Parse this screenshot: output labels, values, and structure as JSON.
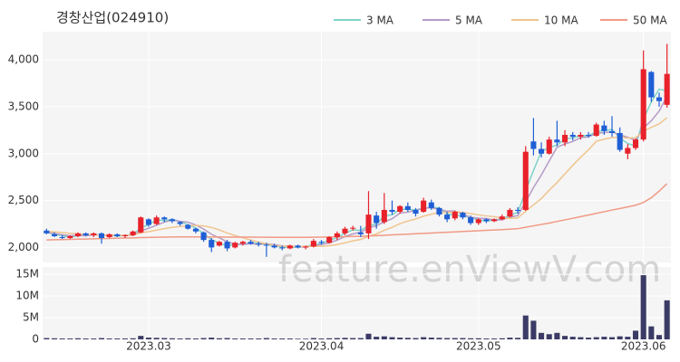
{
  "chart_data": [
    {
      "type": "candlestick",
      "title": "경창산업(024910)",
      "watermark": "feature.enViewV.com",
      "legend": "top-right",
      "up_color": "#e8212a",
      "down_color": "#1f5fd6",
      "grid": true,
      "categories": [
        null,
        null,
        null,
        null,
        null,
        null,
        null,
        null,
        null,
        null,
        null,
        null,
        null,
        "2023.03",
        null,
        null,
        null,
        null,
        null,
        null,
        null,
        null,
        null,
        null,
        null,
        null,
        null,
        null,
        null,
        null,
        null,
        null,
        null,
        null,
        null,
        "2023.04",
        null,
        null,
        null,
        null,
        null,
        null,
        null,
        null,
        null,
        null,
        null,
        null,
        null,
        null,
        null,
        null,
        null,
        null,
        null,
        "2023.05",
        null,
        null,
        null,
        null,
        null,
        null,
        null,
        null,
        null,
        null,
        null,
        null,
        null,
        null,
        null,
        null,
        null,
        null,
        null,
        null,
        "2023.06",
        null,
        null,
        null
      ],
      "open": [
        2180,
        2140,
        2110,
        2100,
        2120,
        2150,
        2130,
        2150,
        2110,
        2140,
        2120,
        2130,
        2160,
        2300,
        2250,
        2320,
        2300,
        2270,
        2240,
        2200,
        2160,
        2080,
        2020,
        2060,
        2000,
        2040,
        2060,
        2040,
        2030,
        2020,
        2000,
        1990,
        2020,
        2000,
        2010,
        2060,
        2050,
        2110,
        2150,
        2200,
        2160,
        2150,
        2340,
        2270,
        2400,
        2380,
        2440,
        2400,
        2380,
        2480,
        2420,
        2350,
        2310,
        2370,
        2320,
        2260,
        2300,
        2280,
        2300,
        2330,
        2400,
        2400,
        3130,
        3050,
        3000,
        3150,
        3120,
        3200,
        3180,
        3200,
        3190,
        3300,
        3240,
        3220,
        3000,
        3060,
        3150,
        3870,
        3600,
        3520
      ],
      "high": [
        2200,
        2160,
        2130,
        2130,
        2160,
        2160,
        2160,
        2160,
        2150,
        2150,
        2140,
        2180,
        2330,
        2310,
        2340,
        2330,
        2310,
        2280,
        2250,
        2210,
        2170,
        2100,
        2070,
        2080,
        2060,
        2070,
        2080,
        2060,
        2050,
        2040,
        2020,
        2030,
        2030,
        2020,
        2090,
        2080,
        2120,
        2170,
        2220,
        2230,
        2230,
        2600,
        2380,
        2580,
        2500,
        2450,
        2480,
        2420,
        2530,
        2510,
        2430,
        2380,
        2390,
        2380,
        2340,
        2310,
        2310,
        2310,
        2350,
        2420,
        2430,
        3080,
        3380,
        3120,
        3180,
        3350,
        3250,
        3230,
        3230,
        3230,
        3330,
        3350,
        3400,
        3280,
        3100,
        3160,
        4100,
        3880,
        3650,
        4170
      ],
      "low": [
        2140,
        2110,
        2090,
        2090,
        2110,
        2120,
        2110,
        2040,
        2100,
        2110,
        2100,
        2120,
        2150,
        2220,
        2240,
        2270,
        2260,
        2230,
        2190,
        2150,
        2060,
        1950,
        2010,
        1960,
        1990,
        2020,
        2030,
        2010,
        1900,
        1990,
        1970,
        1980,
        1990,
        1980,
        2000,
        2030,
        2040,
        2080,
        2130,
        2180,
        2110,
        2090,
        2200,
        2250,
        2350,
        2360,
        2380,
        2330,
        2370,
        2400,
        2330,
        2270,
        2290,
        2300,
        2240,
        2240,
        2260,
        2270,
        2290,
        2320,
        2360,
        2390,
        2980,
        2960,
        2990,
        3080,
        3080,
        3140,
        3150,
        3170,
        3180,
        3200,
        3180,
        3020,
        2940,
        3040,
        3130,
        3550,
        3500,
        3490
      ],
      "close": [
        2150,
        2120,
        2100,
        2120,
        2150,
        2130,
        2150,
        2100,
        2140,
        2120,
        2130,
        2170,
        2320,
        2240,
        2320,
        2300,
        2280,
        2250,
        2200,
        2170,
        2080,
        2000,
        2060,
        1990,
        2050,
        2060,
        2040,
        2030,
        2020,
        2000,
        1990,
        2020,
        2000,
        2010,
        2070,
        2050,
        2110,
        2150,
        2200,
        2210,
        2140,
        2350,
        2260,
        2400,
        2380,
        2440,
        2400,
        2360,
        2500,
        2420,
        2350,
        2300,
        2380,
        2320,
        2260,
        2300,
        2280,
        2300,
        2330,
        2400,
        2390,
        3020,
        3050,
        3000,
        3150,
        3120,
        3200,
        3180,
        3200,
        3190,
        3310,
        3240,
        3220,
        3040,
        3060,
        3150,
        3900,
        3600,
        3560,
        3850
      ],
      "series": [
        {
          "name": "3 MA",
          "color": "#7fd3c8",
          "values": [
            2160,
            2140,
            2123,
            2113,
            2123,
            2133,
            2143,
            2127,
            2130,
            2120,
            2130,
            2140,
            2207,
            2243,
            2293,
            2287,
            2300,
            2277,
            2243,
            2207,
            2150,
            2083,
            2047,
            2017,
            2033,
            2033,
            2050,
            2043,
            2030,
            2017,
            2003,
            2003,
            2003,
            2010,
            2027,
            2043,
            2077,
            2103,
            2153,
            2187,
            2183,
            2233,
            2250,
            2337,
            2347,
            2407,
            2407,
            2400,
            2420,
            2427,
            2423,
            2357,
            2343,
            2333,
            2320,
            2293,
            2280,
            2293,
            2303,
            2343,
            2373,
            2603,
            2820,
            3023,
            3067,
            3090,
            3157,
            3167,
            3193,
            3190,
            3233,
            3247,
            3257,
            3167,
            3107,
            3083,
            3370,
            3550,
            3687,
            3670
          ]
        },
        {
          "name": "5 MA",
          "color": "#b59bc6",
          "values": [
            2160,
            2150,
            2135,
            2125,
            2128,
            2124,
            2134,
            2130,
            2134,
            2128,
            2128,
            2132,
            2176,
            2204,
            2236,
            2270,
            2292,
            2278,
            2270,
            2240,
            2196,
            2140,
            2102,
            2060,
            2036,
            2032,
            2040,
            2034,
            2040,
            2030,
            2016,
            2012,
            2006,
            2004,
            2018,
            2030,
            2048,
            2078,
            2116,
            2144,
            2162,
            2210,
            2232,
            2272,
            2306,
            2366,
            2376,
            2396,
            2416,
            2424,
            2406,
            2386,
            2390,
            2354,
            2322,
            2312,
            2308,
            2292,
            2294,
            2322,
            2340,
            2488,
            2638,
            2772,
            2922,
            3068,
            3104,
            3130,
            3170,
            3178,
            3216,
            3224,
            3232,
            3200,
            3174,
            3142,
            3274,
            3350,
            3454,
            3612
          ]
        },
        {
          "name": "10 MA",
          "color": "#f1c48f",
          "values": [
            2170,
            2165,
            2160,
            2150,
            2145,
            2140,
            2135,
            2130,
            2130,
            2131,
            2129,
            2134,
            2156,
            2168,
            2185,
            2201,
            2214,
            2224,
            2230,
            2235,
            2230,
            2213,
            2187,
            2154,
            2127,
            2103,
            2079,
            2057,
            2039,
            2022,
            2013,
            2015,
            2009,
            2011,
            2013,
            2012,
            2019,
            2031,
            2049,
            2070,
            2085,
            2118,
            2144,
            2183,
            2214,
            2253,
            2282,
            2303,
            2333,
            2354,
            2375,
            2369,
            2381,
            2373,
            2361,
            2347,
            2335,
            2329,
            2312,
            2310,
            2314,
            2386,
            2453,
            2521,
            2610,
            2692,
            2784,
            2874,
            2961,
            3040,
            3132,
            3154,
            3171,
            3175,
            3166,
            3169,
            3239,
            3281,
            3317,
            3383
          ]
        },
        {
          "name": "50 MA",
          "color": "#f19a85",
          "values": [
            2080,
            2082,
            2084,
            2086,
            2088,
            2090,
            2092,
            2094,
            2096,
            2098,
            2100,
            2102,
            2105,
            2107,
            2109,
            2110,
            2111,
            2112,
            2112,
            2112,
            2112,
            2111,
            2111,
            2110,
            2110,
            2110,
            2110,
            2109,
            2109,
            2108,
            2108,
            2108,
            2108,
            2108,
            2109,
            2110,
            2111,
            2113,
            2115,
            2117,
            2119,
            2122,
            2126,
            2130,
            2134,
            2138,
            2142,
            2146,
            2150,
            2154,
            2158,
            2162,
            2166,
            2170,
            2174,
            2178,
            2182,
            2186,
            2190,
            2195,
            2200,
            2215,
            2230,
            2245,
            2260,
            2277,
            2294,
            2311,
            2328,
            2345,
            2363,
            2381,
            2399,
            2415,
            2432,
            2450,
            2480,
            2530,
            2600,
            2680
          ]
        }
      ],
      "ylim": [
        1840,
        4300
      ],
      "yticks": [
        {
          "value": 2000,
          "label": "2,000"
        },
        {
          "value": 2500,
          "label": "2,500"
        },
        {
          "value": 3000,
          "label": "3,000"
        },
        {
          "value": 3500,
          "label": "3,500"
        },
        {
          "value": 4000,
          "label": "4,000"
        }
      ]
    },
    {
      "type": "bar",
      "color": "#3b3b66",
      "values": [
        300000,
        250000,
        200000,
        200000,
        250000,
        200000,
        200000,
        300000,
        200000,
        200000,
        200000,
        250000,
        800000,
        400000,
        350000,
        300000,
        250000,
        200000,
        250000,
        200000,
        300000,
        400000,
        250000,
        300000,
        200000,
        200000,
        200000,
        200000,
        300000,
        200000,
        200000,
        200000,
        150000,
        150000,
        300000,
        200000,
        250000,
        300000,
        350000,
        300000,
        300000,
        1300000,
        600000,
        700000,
        500000,
        400000,
        350000,
        300000,
        500000,
        400000,
        350000,
        300000,
        300000,
        300000,
        250000,
        250000,
        200000,
        200000,
        250000,
        400000,
        350000,
        5500000,
        4300000,
        1500000,
        1200000,
        1500000,
        800000,
        600000,
        500000,
        400000,
        500000,
        600000,
        500000,
        700000,
        600000,
        2000000,
        14800000,
        3000000,
        1000000,
        9000000
      ],
      "ylim": [
        0,
        16700000
      ],
      "yticks": [
        0,
        {
          "value": 5000000,
          "label": "5M"
        },
        {
          "value": 10000000,
          "label": "10M"
        },
        {
          "value": 15000000,
          "label": "15M"
        }
      ]
    }
  ]
}
